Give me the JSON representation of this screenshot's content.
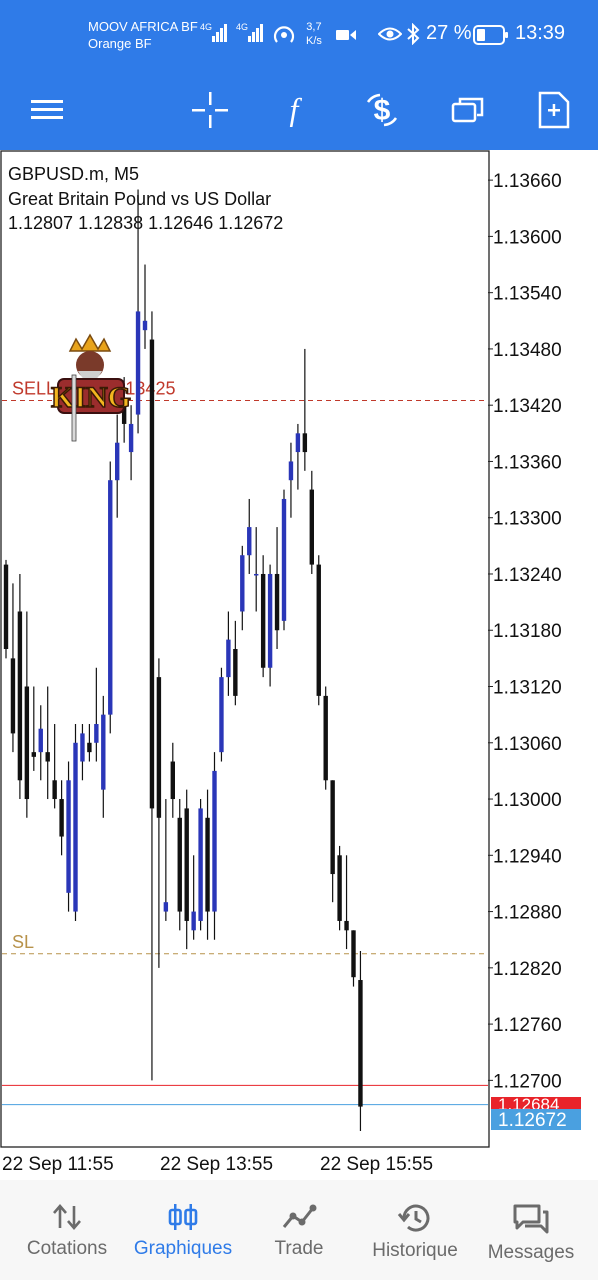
{
  "status_bar": {
    "carrier_1": "MOOV AFRICA BF",
    "carrier_2": "Orange BF",
    "signal_1_tech": "4G",
    "signal_2_tech": "4G",
    "speed_value": "3,7",
    "speed_unit": "K/s",
    "battery_percent": "27 %",
    "time": "13:39"
  },
  "chart": {
    "symbol": "GBPUSD.m, M5",
    "description": "Great Britain Pound vs US Dollar",
    "ohlc": "1.12807 1.12838 1.12646 1.12672",
    "watermark_text": "KING",
    "sell_label": "SELL 0.1 at 1.13425",
    "sl_label": "SL",
    "bid_label": "1.12684",
    "ask_label": "1.12672",
    "time_labels": [
      "22 Sep 11:55",
      "22 Sep 13:55",
      "22 Sep 15:55"
    ],
    "colors": {
      "bull": "#2a36b8",
      "bear": "#111111",
      "sell_line": "#c0392b",
      "sl_line": "#b7924a",
      "bid_fill": "#e8232a",
      "ask_fill": "#4aa0e0"
    }
  },
  "chart_data": {
    "type": "candlestick",
    "symbol": "GBPUSD.m",
    "timeframe": "M5",
    "ylim": [
      1.1263,
      1.1369
    ],
    "y_ticks": [
      "1.13660",
      "1.13600",
      "1.13540",
      "1.13480",
      "1.13420",
      "1.13360",
      "1.13300",
      "1.13240",
      "1.13180",
      "1.13120",
      "1.13060",
      "1.13000",
      "1.12940",
      "1.12880",
      "1.12820",
      "1.12760",
      "1.12700"
    ],
    "x_ticks": [
      "22 Sep 11:55",
      "22 Sep 13:55",
      "22 Sep 15:55"
    ],
    "levels": [
      {
        "name": "SELL 0.1 at",
        "price": 1.13425
      },
      {
        "name": "SL",
        "price": 1.12835
      }
    ],
    "candles": [
      [
        1.1325,
        1.13255,
        1.1315,
        1.1316
      ],
      [
        1.1315,
        1.1323,
        1.1305,
        1.1307
      ],
      [
        1.132,
        1.1324,
        1.13,
        1.1302
      ],
      [
        1.1312,
        1.132,
        1.1298,
        1.13
      ],
      [
        1.1305,
        1.1312,
        1.1303,
        1.13045
      ],
      [
        1.1305,
        1.131,
        1.1302,
        1.13075
      ],
      [
        1.1305,
        1.1312,
        1.13,
        1.1304
      ],
      [
        1.1302,
        1.1308,
        1.1299,
        1.13
      ],
      [
        1.13,
        1.1302,
        1.1294,
        1.1296
      ],
      [
        1.129,
        1.1304,
        1.1288,
        1.1302
      ],
      [
        1.1288,
        1.1308,
        1.1287,
        1.1306
      ],
      [
        1.1304,
        1.1308,
        1.1302,
        1.1307
      ],
      [
        1.1306,
        1.1308,
        1.1304,
        1.1305
      ],
      [
        1.1306,
        1.1314,
        1.1304,
        1.1308
      ],
      [
        1.1301,
        1.1311,
        1.1298,
        1.1309
      ],
      [
        1.1309,
        1.1336,
        1.1307,
        1.1334
      ],
      [
        1.1334,
        1.1341,
        1.133,
        1.1338
      ],
      [
        1.1342,
        1.1345,
        1.1338,
        1.134
      ],
      [
        1.1337,
        1.1342,
        1.1334,
        1.134
      ],
      [
        1.1341,
        1.1365,
        1.1339,
        1.1352
      ],
      [
        1.135,
        1.1357,
        1.1348,
        1.1351
      ],
      [
        1.1349,
        1.1352,
        1.127,
        1.1299
      ],
      [
        1.1313,
        1.1315,
        1.1282,
        1.1298
      ],
      [
        1.1288,
        1.13,
        1.1287,
        1.1289
      ],
      [
        1.1304,
        1.1306,
        1.1298,
        1.13
      ],
      [
        1.1298,
        1.13,
        1.1286,
        1.1288
      ],
      [
        1.1299,
        1.1301,
        1.1284,
        1.1287
      ],
      [
        1.1286,
        1.1294,
        1.1285,
        1.1288
      ],
      [
        1.1287,
        1.13,
        1.1286,
        1.1299
      ],
      [
        1.1298,
        1.1301,
        1.1285,
        1.1288
      ],
      [
        1.1288,
        1.1305,
        1.1285,
        1.1303
      ],
      [
        1.1305,
        1.1314,
        1.1304,
        1.1313
      ],
      [
        1.1313,
        1.132,
        1.1311,
        1.1317
      ],
      [
        1.1316,
        1.1319,
        1.131,
        1.1311
      ],
      [
        1.132,
        1.1327,
        1.1318,
        1.1326
      ],
      [
        1.1326,
        1.1332,
        1.1324,
        1.1329
      ],
      [
        1.1324,
        1.1329,
        1.132,
        1.1324
      ],
      [
        1.1324,
        1.1326,
        1.1313,
        1.1314
      ],
      [
        1.1314,
        1.1325,
        1.1312,
        1.1324
      ],
      [
        1.1324,
        1.1329,
        1.1316,
        1.1318
      ],
      [
        1.1319,
        1.1333,
        1.1318,
        1.1332
      ],
      [
        1.1334,
        1.1338,
        1.133,
        1.1336
      ],
      [
        1.1337,
        1.134,
        1.1333,
        1.1339
      ],
      [
        1.1339,
        1.1348,
        1.1335,
        1.1337
      ],
      [
        1.1333,
        1.1335,
        1.1324,
        1.1325
      ],
      [
        1.1325,
        1.1326,
        1.131,
        1.1311
      ],
      [
        1.1311,
        1.1312,
        1.1301,
        1.1302
      ],
      [
        1.1302,
        1.1302,
        1.1289,
        1.1292
      ],
      [
        1.1294,
        1.1295,
        1.1286,
        1.1287
      ],
      [
        1.1287,
        1.1294,
        1.1284,
        1.1286
      ],
      [
        1.1286,
        1.1286,
        1.128,
        1.1281
      ],
      [
        1.12807,
        1.12838,
        1.12646,
        1.12672
      ]
    ],
    "bid": 1.12684,
    "ask": 1.12672
  },
  "bottom_nav": [
    {
      "label": "Cotations",
      "icon": "quotes-icon",
      "active": false
    },
    {
      "label": "Graphiques",
      "icon": "charts-icon",
      "active": true
    },
    {
      "label": "Trade",
      "icon": "trade-icon",
      "active": false
    },
    {
      "label": "Historique",
      "icon": "history-icon",
      "active": false
    },
    {
      "label": "Messages",
      "icon": "messages-icon",
      "active": false
    }
  ]
}
